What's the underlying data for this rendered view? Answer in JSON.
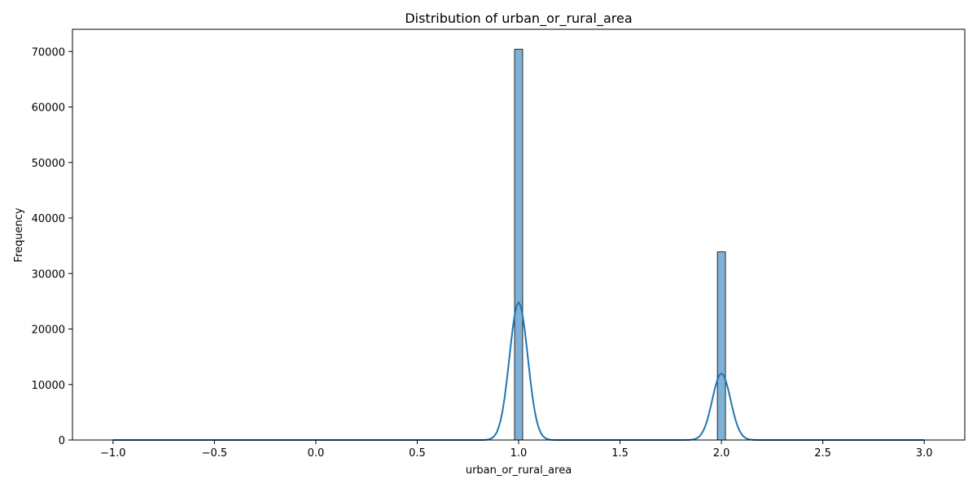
{
  "chart_data": {
    "type": "bar",
    "subtype": "histogram with kde line",
    "title": "Distribution of urban_or_rural_area",
    "xlabel": "urban_or_rural_area",
    "ylabel": "Frequency",
    "xlim": [
      -1.2,
      3.2
    ],
    "ylim": [
      0,
      74000
    ],
    "xticks": [
      -1.0,
      -0.5,
      0.0,
      0.5,
      1.0,
      1.5,
      2.0,
      2.5,
      3.0
    ],
    "xtick_labels": [
      "−1.0",
      "−0.5",
      "0.0",
      "0.5",
      "1.0",
      "1.5",
      "2.0",
      "2.5",
      "3.0"
    ],
    "yticks": [
      0,
      10000,
      20000,
      30000,
      40000,
      50000,
      60000,
      70000
    ],
    "ytick_labels": [
      "0",
      "10000",
      "20000",
      "30000",
      "40000",
      "50000",
      "60000",
      "70000"
    ],
    "grid": false,
    "bars": [
      {
        "x0": 0.98,
        "x1": 1.02,
        "value": 70400
      },
      {
        "x0": 1.98,
        "x1": 2.02,
        "value": 33900
      }
    ],
    "kde": {
      "x_range": [
        -1.0,
        3.0
      ],
      "peaks": [
        {
          "center": 1.0,
          "height": 24800,
          "sigma": 0.045
        },
        {
          "center": 2.0,
          "height": 12000,
          "sigma": 0.045
        }
      ]
    },
    "colors": {
      "bar_fill": "#7fb0d6",
      "bar_edge": "#000000",
      "kde_line": "#1f77b4"
    }
  }
}
